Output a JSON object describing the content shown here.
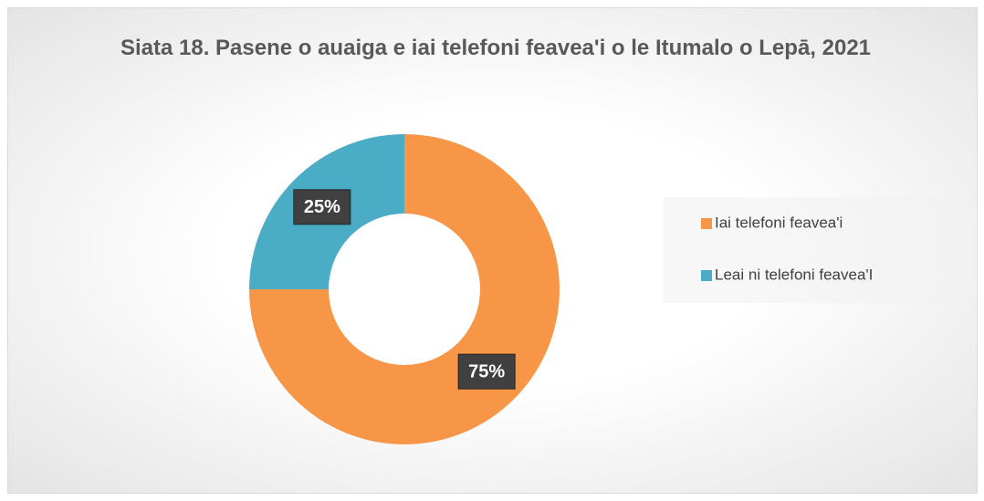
{
  "chart_data": {
    "type": "donut",
    "title": "Siata 18. Pasene o auaiga e iai telefoni feavea'i o le Itumalo o Lepā, 2021",
    "categories": [
      "Iai telefoni feavea'i",
      "Leai ni telefoni feavea'I"
    ],
    "values": [
      75,
      25
    ],
    "value_labels": [
      "75%",
      "25%"
    ],
    "colors": [
      "#f79646",
      "#4bacc6"
    ],
    "legend": "right"
  }
}
